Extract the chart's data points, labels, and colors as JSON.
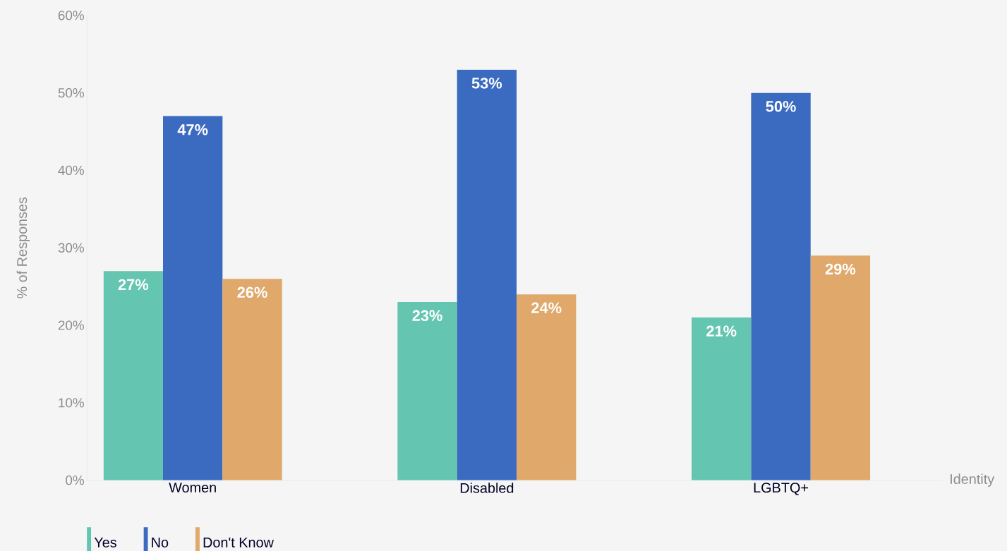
{
  "chart_data": {
    "type": "bar",
    "xlabel": "Identity",
    "ylabel": "% of Responses",
    "categories": [
      "Women",
      "Disabled",
      "LGBTQ+"
    ],
    "series": [
      {
        "name": "Yes",
        "color": "#64c5b1",
        "values": [
          27,
          23,
          21
        ],
        "value_labels": [
          "27%",
          "23%",
          "21%"
        ]
      },
      {
        "name": "No",
        "color": "#3b6bc0",
        "values": [
          47,
          53,
          50
        ],
        "value_labels": [
          "47%",
          "53%",
          "50%"
        ]
      },
      {
        "name": "Don't Know",
        "color": "#e0a96b",
        "values": [
          26,
          24,
          29
        ],
        "value_labels": [
          "26%",
          "24%",
          "29%"
        ]
      }
    ],
    "ylim": [
      0,
      60
    ],
    "yticks": [
      {
        "value": 0,
        "label": "0%"
      },
      {
        "value": 10,
        "label": "10%"
      },
      {
        "value": 20,
        "label": "20%"
      },
      {
        "value": 30,
        "label": "30%"
      },
      {
        "value": 40,
        "label": "40%"
      },
      {
        "value": 50,
        "label": "50%"
      },
      {
        "value": 60,
        "label": "60%"
      }
    ],
    "grid": false,
    "legend": "bottom"
  }
}
